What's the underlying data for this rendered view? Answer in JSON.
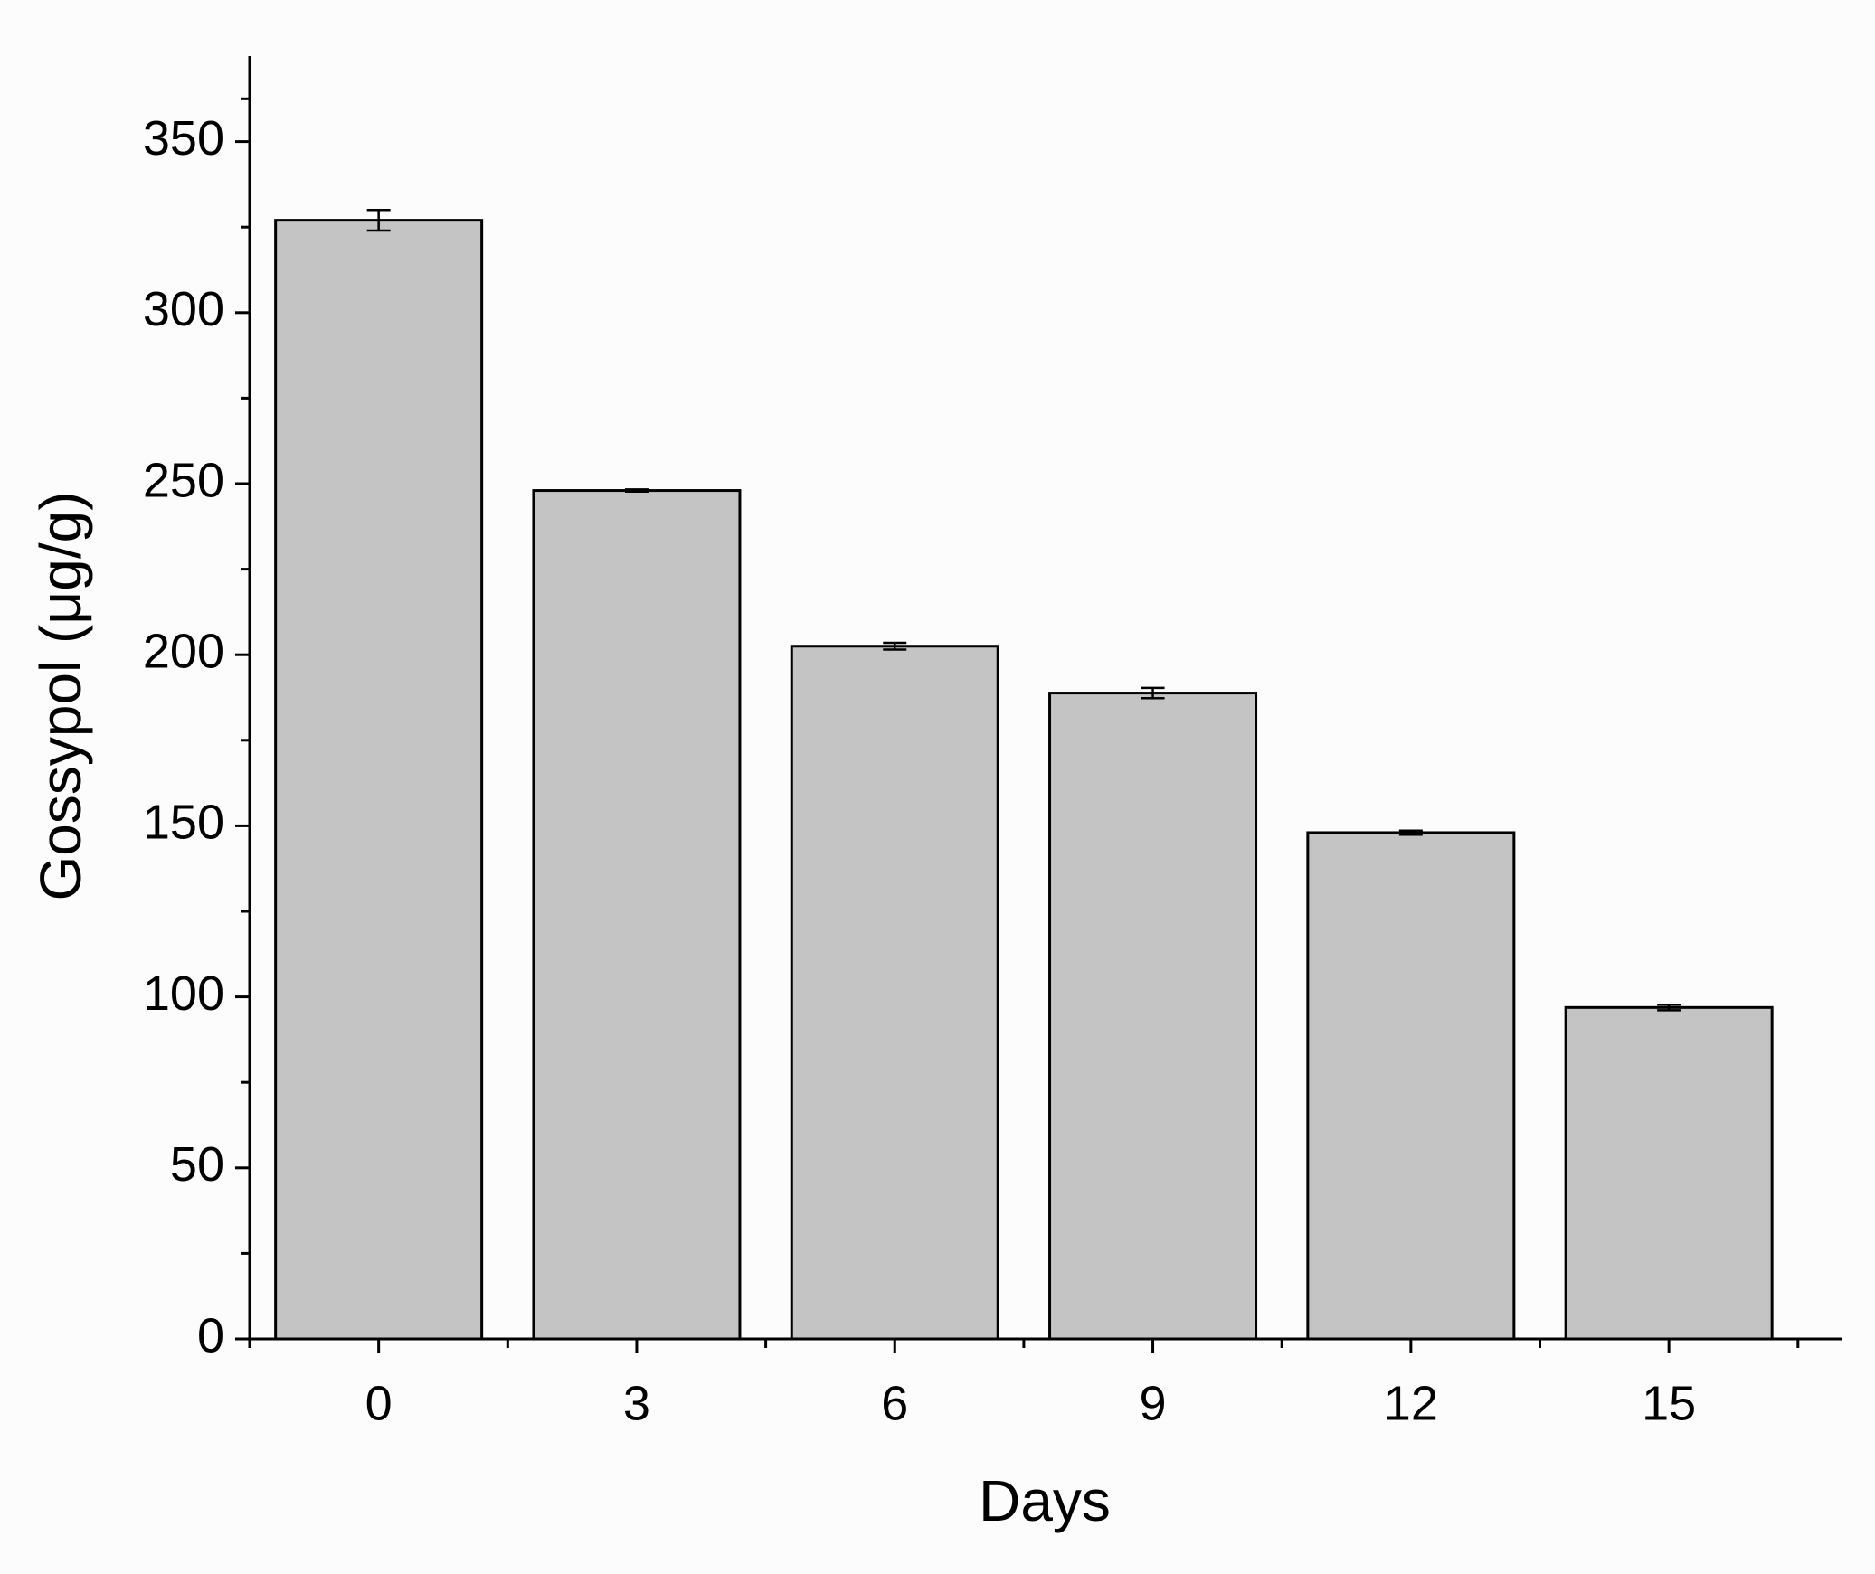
{
  "chart_data": {
    "type": "bar",
    "x_label": "Days",
    "y_label": "Gossypol (μg/g)",
    "categories": [
      "0",
      "3",
      "6",
      "9",
      "12",
      "15"
    ],
    "values": [
      327,
      248,
      202.5,
      188.8,
      148,
      96.9
    ],
    "errors": [
      3,
      0.3,
      1,
      1.5,
      0.6,
      0.8
    ],
    "color": "#c4c4c4",
    "ylim": [
      0,
      375
    ],
    "yticks": [
      0,
      50,
      100,
      150,
      200,
      250,
      300,
      350
    ]
  }
}
